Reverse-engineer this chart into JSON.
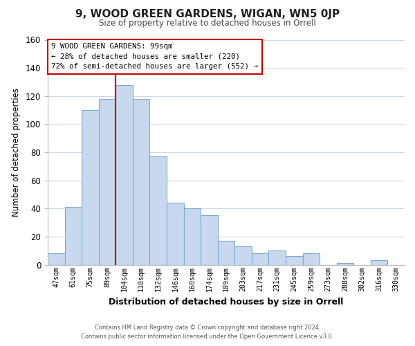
{
  "title": "9, WOOD GREEN GARDENS, WIGAN, WN5 0JP",
  "subtitle": "Size of property relative to detached houses in Orrell",
  "xlabel": "Distribution of detached houses by size in Orrell",
  "ylabel": "Number of detached properties",
  "categories": [
    "47sqm",
    "61sqm",
    "75sqm",
    "89sqm",
    "104sqm",
    "118sqm",
    "132sqm",
    "146sqm",
    "160sqm",
    "174sqm",
    "189sqm",
    "203sqm",
    "217sqm",
    "231sqm",
    "245sqm",
    "259sqm",
    "273sqm",
    "288sqm",
    "302sqm",
    "316sqm",
    "330sqm"
  ],
  "values": [
    8,
    41,
    110,
    118,
    128,
    118,
    77,
    44,
    40,
    35,
    17,
    13,
    8,
    10,
    6,
    8,
    0,
    1,
    0,
    3,
    0
  ],
  "bar_color": "#c8d9ef",
  "bar_edge_color": "#7aaad0",
  "vline_x_index": 4,
  "vline_color": "#cc0000",
  "ylim": [
    0,
    160
  ],
  "yticks": [
    0,
    20,
    40,
    60,
    80,
    100,
    120,
    140,
    160
  ],
  "annotation_title": "9 WOOD GREEN GARDENS: 99sqm",
  "annotation_line1": "← 28% of detached houses are smaller (220)",
  "annotation_line2": "72% of semi-detached houses are larger (552) →",
  "annotation_box_color": "#ffffff",
  "annotation_box_edge": "#cc0000",
  "footer_line1": "Contains HM Land Registry data © Crown copyright and database right 2024.",
  "footer_line2": "Contains public sector information licensed under the Open Government Licence v3.0.",
  "background_color": "#ffffff",
  "grid_color": "#cdd7e8"
}
